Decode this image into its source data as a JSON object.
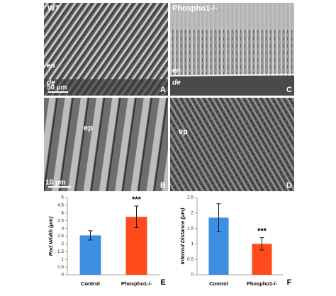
{
  "panels": [
    {
      "labels": [
        "WT",
        "en",
        "de",
        "50 µm"
      ],
      "letter": "A"
    },
    {
      "labels": [
        "Phospho1-/-",
        "en",
        "de"
      ],
      "letter": "C"
    },
    {
      "labels": [
        "ep",
        "10 µm"
      ],
      "letter": "B"
    },
    {
      "labels": [
        "ep"
      ],
      "letter": "D"
    }
  ],
  "chart_data": [
    {
      "type": "bar",
      "y_label": "Rod Width (μm)",
      "categories": [
        "Control",
        "Phospho1-/-"
      ],
      "series": [
        {
          "values": [
            2.55,
            3.75
          ],
          "errors": [
            0.3,
            0.7
          ]
        }
      ],
      "colors": [
        "#3d8fe3",
        "#ff4a1c"
      ],
      "ylim": [
        0,
        5
      ],
      "yticks": [
        0,
        0.5,
        1,
        1.5,
        2,
        2.5,
        3,
        3.5,
        4,
        4.5,
        5
      ],
      "annotation": "***",
      "panel_label": "E"
    },
    {
      "type": "bar",
      "y_label": "Interrod Distance (μm)",
      "categories": [
        "Control",
        "Phospho1-/-"
      ],
      "series": [
        {
          "values": [
            1.85,
            1.0
          ],
          "errors": [
            0.45,
            0.2
          ]
        }
      ],
      "colors": [
        "#3d8fe3",
        "#ff4a1c"
      ],
      "ylim": [
        0,
        2.5
      ],
      "yticks": [
        0,
        0.5,
        1,
        1.5,
        2,
        2.5
      ],
      "annotation": "***",
      "panel_label": "F"
    }
  ]
}
